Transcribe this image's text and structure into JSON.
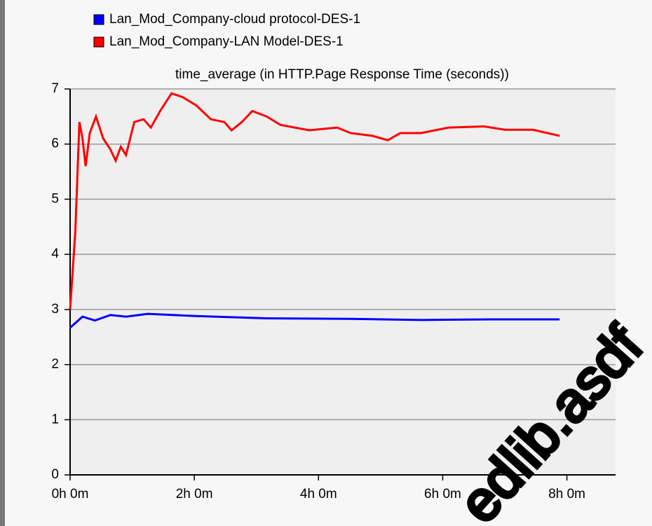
{
  "chart_data": {
    "type": "line",
    "title": "time_average (in HTTP.Page Response Time (seconds))",
    "series": [
      {
        "name": "Lan_Mod_Company-cloud protocol-DES-1",
        "color": "#0000ff",
        "x": [
          0,
          12,
          24,
          39,
          54,
          75,
          122,
          190,
          271,
          339,
          407,
          473
        ],
        "values": [
          2.67,
          2.87,
          2.8,
          2.9,
          2.87,
          2.92,
          2.88,
          2.84,
          2.83,
          2.81,
          2.82,
          2.82
        ]
      },
      {
        "name": "Lan_Mod_Company-LAN Model-DES-1",
        "color": "#ff0000",
        "x": [
          0,
          5,
          9,
          12,
          15,
          19,
          25,
          32,
          39,
          44,
          49,
          54,
          62,
          71,
          78,
          87,
          98,
          109,
          122,
          136,
          149,
          156,
          166,
          176,
          190,
          203,
          217,
          231,
          258,
          271,
          292,
          307,
          319,
          339,
          366,
          400,
          420,
          447,
          473
        ],
        "values": [
          3.0,
          4.4,
          6.4,
          6.1,
          5.6,
          6.2,
          6.5,
          6.1,
          5.9,
          5.7,
          5.95,
          5.8,
          6.4,
          6.45,
          6.3,
          6.6,
          6.92,
          6.85,
          6.7,
          6.45,
          6.4,
          6.25,
          6.4,
          6.6,
          6.5,
          6.35,
          6.3,
          6.25,
          6.3,
          6.2,
          6.15,
          6.07,
          6.2,
          6.2,
          6.3,
          6.32,
          6.26,
          6.26,
          6.15
        ]
      }
    ],
    "xlim": [
      0,
      527
    ],
    "xticks": [
      {
        "value": 0,
        "label": "0h 0m"
      },
      {
        "value": 120,
        "label": "2h 0m"
      },
      {
        "value": 240,
        "label": "4h 0m"
      },
      {
        "value": 360,
        "label": "6h 0m"
      },
      {
        "value": 480,
        "label": "8h 0m"
      }
    ],
    "ylim": [
      0,
      7
    ],
    "yticks": [
      0,
      1,
      2,
      3,
      4,
      5,
      6,
      7
    ],
    "grid": true,
    "watermark": "edlib.asdf"
  }
}
